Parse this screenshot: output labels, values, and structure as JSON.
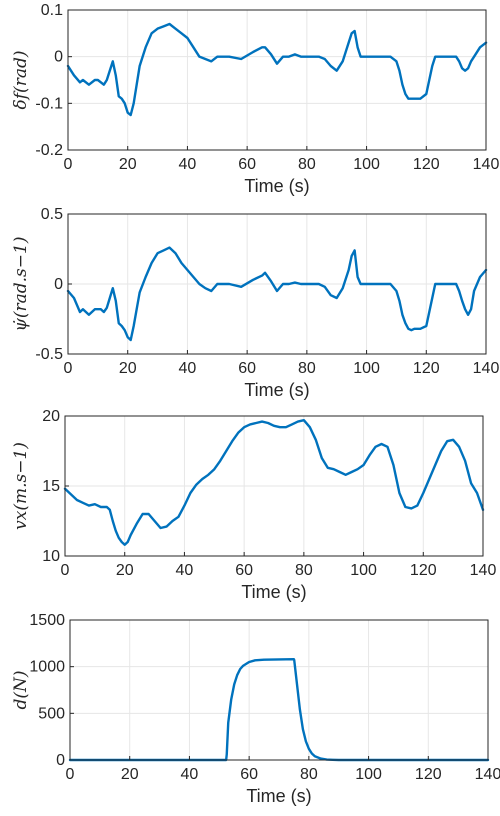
{
  "colors": {
    "series": "#0072BD",
    "grid": "#e6e6e6",
    "axis": "#262626"
  },
  "chart_data": [
    {
      "type": "line",
      "ylabel": "δf(rad)",
      "xlabel": "Time (s)",
      "xlim": [
        0,
        140
      ],
      "ylim": [
        -0.2,
        0.1
      ],
      "grid": true,
      "x_ticks": [
        "0",
        "20",
        "40",
        "60",
        "80",
        "100",
        "120",
        "140"
      ],
      "y_ticks": [
        "-0.2",
        "-0.1",
        "0",
        "0.1"
      ],
      "series": [
        {
          "x": [
            0,
            1,
            2,
            4,
            5,
            7,
            9,
            10,
            12,
            13,
            14,
            15,
            16,
            17,
            18,
            19,
            20,
            21,
            22,
            23,
            24,
            26,
            28,
            30,
            32,
            34,
            36,
            38,
            40,
            42,
            44,
            46,
            48,
            50,
            54,
            58,
            62,
            65,
            66,
            68,
            70,
            72,
            74,
            76,
            78,
            80,
            82,
            84,
            86,
            88,
            90,
            92,
            94,
            95,
            96,
            97,
            98,
            100,
            104,
            108,
            110,
            111,
            112,
            113,
            114,
            115,
            116,
            118,
            120,
            121,
            122,
            123,
            124,
            126,
            128,
            130,
            131,
            132,
            133,
            134,
            135,
            136,
            138,
            140
          ],
          "y": [
            -0.02,
            -0.03,
            -0.04,
            -0.055,
            -0.05,
            -0.06,
            -0.05,
            -0.05,
            -0.06,
            -0.05,
            -0.03,
            -0.01,
            -0.04,
            -0.085,
            -0.09,
            -0.1,
            -0.12,
            -0.125,
            -0.1,
            -0.06,
            -0.02,
            0.02,
            0.05,
            0.06,
            0.065,
            0.07,
            0.06,
            0.05,
            0.04,
            0.02,
            0.0,
            -0.005,
            -0.01,
            0.0,
            0.0,
            -0.005,
            0.01,
            0.02,
            0.02,
            0.005,
            -0.015,
            0.0,
            0.0,
            0.005,
            0.0,
            0.0,
            0.0,
            0.0,
            -0.005,
            -0.02,
            -0.03,
            -0.01,
            0.03,
            0.05,
            0.055,
            0.02,
            0.0,
            0.0,
            0.0,
            0.0,
            -0.01,
            -0.03,
            -0.06,
            -0.08,
            -0.09,
            -0.09,
            -0.09,
            -0.09,
            -0.08,
            -0.05,
            -0.02,
            0.0,
            0.0,
            0.0,
            0.0,
            0.0,
            -0.01,
            -0.025,
            -0.03,
            -0.025,
            -0.01,
            0.0,
            0.02,
            0.03
          ]
        }
      ]
    },
    {
      "type": "line",
      "ylabel": "ψ̇(rad.s−1)",
      "xlabel": "Time (s)",
      "xlim": [
        0,
        140
      ],
      "ylim": [
        -0.5,
        0.5
      ],
      "grid": true,
      "x_ticks": [
        "0",
        "20",
        "40",
        "60",
        "80",
        "100",
        "120",
        "140"
      ],
      "y_ticks": [
        "-0.5",
        "0",
        "0.5"
      ],
      "series": [
        {
          "x": [
            0,
            2,
            4,
            5,
            7,
            9,
            11,
            12,
            13,
            14,
            15,
            16,
            17,
            18,
            19,
            20,
            21,
            22,
            23,
            24,
            26,
            28,
            30,
            32,
            34,
            36,
            38,
            40,
            42,
            44,
            46,
            48,
            50,
            54,
            58,
            62,
            65,
            66,
            68,
            70,
            72,
            74,
            76,
            78,
            80,
            82,
            84,
            86,
            88,
            90,
            92,
            94,
            95,
            96,
            97,
            98,
            100,
            104,
            108,
            110,
            111,
            112,
            113,
            114,
            115,
            116,
            118,
            120,
            121,
            122,
            123,
            124,
            126,
            128,
            130,
            131,
            132,
            133,
            134,
            135,
            136,
            138,
            140
          ],
          "y": [
            -0.05,
            -0.1,
            -0.2,
            -0.18,
            -0.22,
            -0.18,
            -0.18,
            -0.2,
            -0.17,
            -0.1,
            -0.03,
            -0.12,
            -0.28,
            -0.3,
            -0.33,
            -0.38,
            -0.4,
            -0.3,
            -0.18,
            -0.06,
            0.05,
            0.15,
            0.22,
            0.24,
            0.26,
            0.22,
            0.15,
            0.1,
            0.05,
            0.0,
            -0.03,
            -0.05,
            0.0,
            0.0,
            -0.02,
            0.03,
            0.06,
            0.08,
            0.02,
            -0.05,
            0.0,
            0.0,
            0.01,
            0.0,
            0.0,
            0.0,
            0.0,
            -0.02,
            -0.08,
            -0.1,
            -0.03,
            0.1,
            0.2,
            0.24,
            0.05,
            0.0,
            0.0,
            0.0,
            0.0,
            -0.05,
            -0.12,
            -0.22,
            -0.28,
            -0.32,
            -0.33,
            -0.32,
            -0.32,
            -0.3,
            -0.2,
            -0.1,
            0.0,
            0.0,
            0.0,
            0.0,
            0.0,
            -0.05,
            -0.12,
            -0.18,
            -0.22,
            -0.18,
            -0.05,
            0.05,
            0.1
          ]
        }
      ]
    },
    {
      "type": "line",
      "ylabel": "vx(m.s−1)",
      "xlabel": "Time (s)",
      "xlim": [
        0,
        140
      ],
      "ylim": [
        10,
        20
      ],
      "grid": true,
      "x_ticks": [
        "0",
        "20",
        "40",
        "60",
        "80",
        "100",
        "120",
        "140"
      ],
      "y_ticks": [
        "10",
        "15",
        "20"
      ],
      "series": [
        {
          "x": [
            0,
            2,
            4,
            6,
            8,
            10,
            12,
            14,
            15,
            16,
            17,
            18,
            19,
            20,
            21,
            22,
            24,
            26,
            28,
            30,
            32,
            34,
            36,
            38,
            40,
            42,
            44,
            46,
            48,
            50,
            52,
            54,
            56,
            58,
            60,
            62,
            64,
            66,
            68,
            70,
            72,
            74,
            76,
            78,
            80,
            82,
            84,
            86,
            88,
            90,
            92,
            94,
            96,
            98,
            100,
            102,
            104,
            106,
            108,
            110,
            112,
            114,
            116,
            118,
            120,
            122,
            124,
            126,
            128,
            130,
            132,
            134,
            136,
            138,
            140
          ],
          "y": [
            14.8,
            14.4,
            14.0,
            13.8,
            13.6,
            13.7,
            13.5,
            13.5,
            13.3,
            12.5,
            11.8,
            11.3,
            11.0,
            10.8,
            11.0,
            11.5,
            12.3,
            13.0,
            13.0,
            12.5,
            12.0,
            12.1,
            12.5,
            12.8,
            13.6,
            14.5,
            15.1,
            15.5,
            15.8,
            16.2,
            16.8,
            17.5,
            18.2,
            18.8,
            19.2,
            19.4,
            19.5,
            19.6,
            19.5,
            19.3,
            19.2,
            19.2,
            19.4,
            19.6,
            19.7,
            19.2,
            18.3,
            17.0,
            16.3,
            16.2,
            16.0,
            15.8,
            16.0,
            16.2,
            16.5,
            17.2,
            17.8,
            18.0,
            17.8,
            16.5,
            14.5,
            13.5,
            13.4,
            13.6,
            14.5,
            15.5,
            16.5,
            17.5,
            18.2,
            18.3,
            17.8,
            16.8,
            15.2,
            14.5,
            13.3
          ]
        }
      ]
    },
    {
      "type": "line",
      "ylabel": "d(N)",
      "xlabel": "Time (s)",
      "xlim": [
        0,
        140
      ],
      "ylim": [
        0,
        1500
      ],
      "grid": true,
      "x_ticks": [
        "0",
        "20",
        "40",
        "60",
        "80",
        "100",
        "120",
        "140"
      ],
      "y_ticks": [
        "0",
        "500",
        "1000",
        "1500"
      ],
      "series": [
        {
          "x": [
            0,
            52.3,
            52.5,
            53,
            54,
            55,
            56,
            57,
            58,
            60,
            62,
            65,
            70,
            75,
            75.1,
            76,
            77,
            78,
            79,
            80,
            81,
            82,
            84,
            86,
            88,
            90,
            140
          ],
          "y": [
            0,
            0,
            60,
            400,
            650,
            810,
            910,
            975,
            1010,
            1050,
            1068,
            1075,
            1078,
            1080,
            1070,
            820,
            540,
            330,
            200,
            120,
            70,
            40,
            15,
            5,
            2,
            0,
            0
          ]
        }
      ]
    }
  ]
}
